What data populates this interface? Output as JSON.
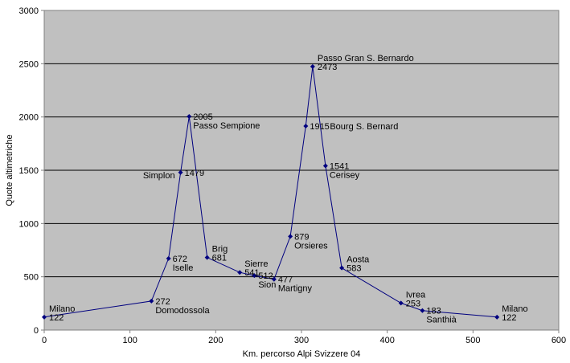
{
  "chart_data": {
    "type": "line",
    "title": "",
    "xlabel": "Km. percorso Alpi Svizzere 04",
    "ylabel": "Quote altimetriche",
    "xlim": [
      0,
      600
    ],
    "ylim": [
      0,
      3000
    ],
    "x_ticks": [
      "0",
      "100",
      "200",
      "300",
      "400",
      "500",
      "600"
    ],
    "y_ticks": [
      "0",
      "500",
      "1000",
      "1500",
      "2000",
      "2500",
      "3000"
    ],
    "grid": "horizontal",
    "legend": "none",
    "colors": {
      "plot_bg": "#c0c0c0",
      "line": "#00007f",
      "grid": "#000000"
    },
    "points": [
      {
        "x": 0,
        "y": 122,
        "name": "Milano",
        "value": "122",
        "pos": "above"
      },
      {
        "x": 125,
        "y": 272,
        "name": "Domodossola",
        "value": "272",
        "pos": "right-stack"
      },
      {
        "x": 145,
        "y": 672,
        "name": "Iselle",
        "value": "672",
        "pos": "right-stack"
      },
      {
        "x": 159,
        "y": 1479,
        "name": "Simplon",
        "value": "1479",
        "pos": "name-left"
      },
      {
        "x": 169,
        "y": 2005,
        "name": "Passo Sempione",
        "value": "2005",
        "pos": "right-stack"
      },
      {
        "x": 190,
        "y": 681,
        "name": "Brig",
        "value": "681",
        "pos": "above"
      },
      {
        "x": 228,
        "y": 541,
        "name": "Sierre",
        "value": "541",
        "pos": "above"
      },
      {
        "x": 245,
        "y": 512,
        "name": "Sion",
        "value": "512",
        "pos": "right-stack"
      },
      {
        "x": 268,
        "y": 477,
        "name": "Martigny",
        "value": "477",
        "pos": "right-stack"
      },
      {
        "x": 287,
        "y": 879,
        "name": "Orsieres",
        "value": "879",
        "pos": "right-stack"
      },
      {
        "x": 305,
        "y": 1915,
        "name": "Bourg S. Bernard",
        "value": "1915",
        "pos": "inline"
      },
      {
        "x": 313,
        "y": 2473,
        "name": "Passo Gran S. Bernardo",
        "value": "2473",
        "pos": "above"
      },
      {
        "x": 328,
        "y": 1541,
        "name": "Cerisey",
        "value": "1541",
        "pos": "right-stack"
      },
      {
        "x": 347,
        "y": 583,
        "name": "Aosta",
        "value": "583",
        "pos": "above"
      },
      {
        "x": 416,
        "y": 253,
        "name": "Ivrea",
        "value": "253",
        "pos": "above"
      },
      {
        "x": 441,
        "y": 183,
        "name": "Santhià",
        "value": "183",
        "pos": "right-stack"
      },
      {
        "x": 528,
        "y": 122,
        "name": "Milano",
        "value": "122",
        "pos": "above"
      }
    ]
  }
}
